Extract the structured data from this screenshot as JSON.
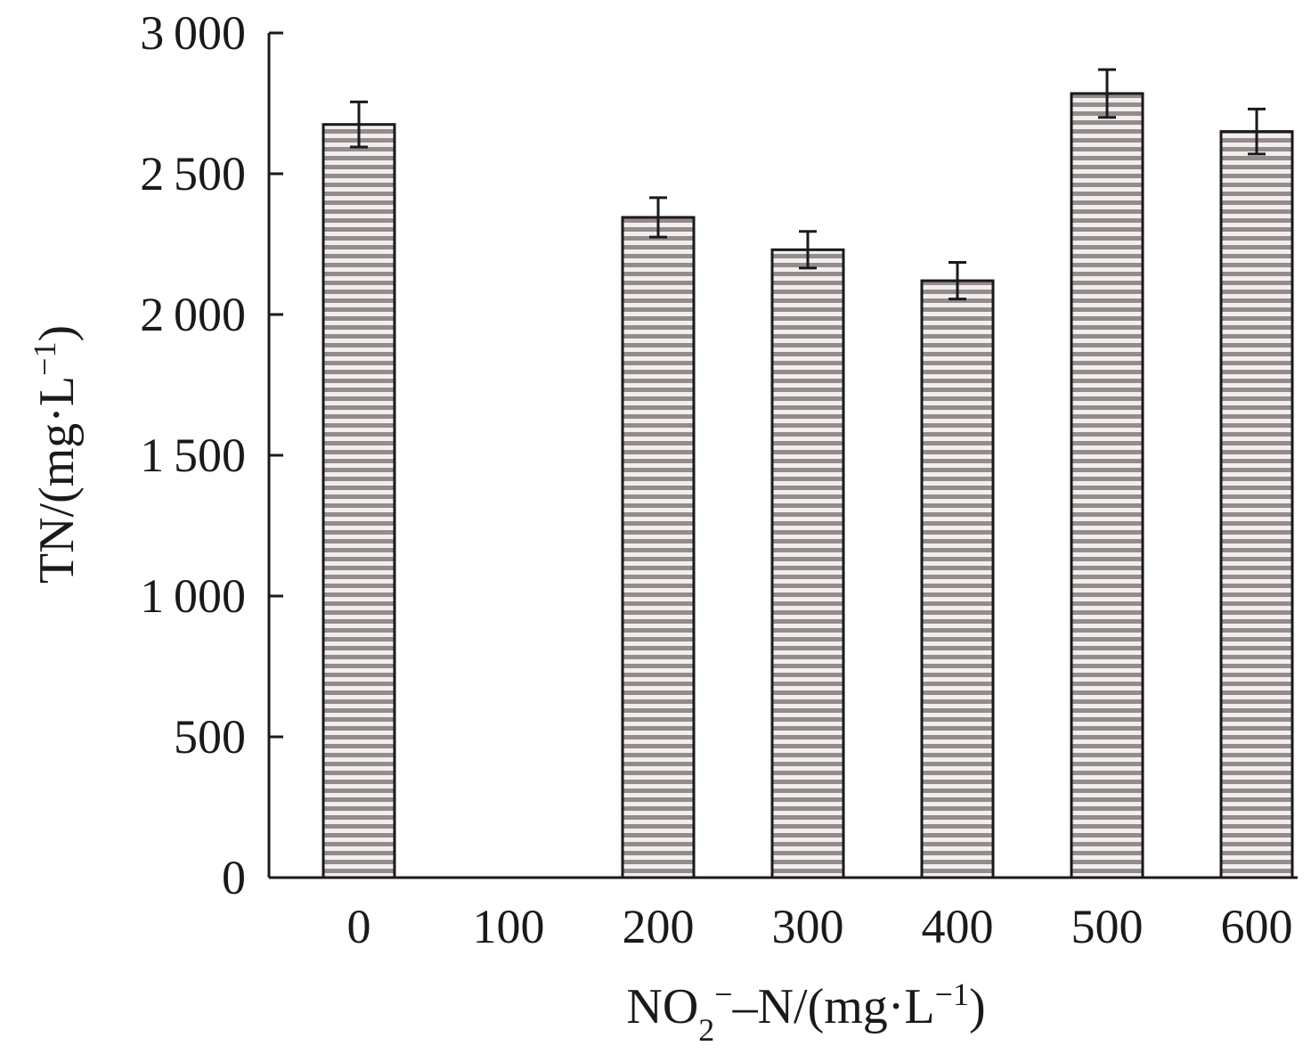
{
  "chart_data": {
    "type": "bar",
    "categories": [
      "0",
      "100",
      "200",
      "300",
      "400",
      "500",
      "600"
    ],
    "values": [
      2675,
      null,
      2345,
      2230,
      2120,
      2785,
      2650
    ],
    "errors": [
      80,
      null,
      70,
      65,
      65,
      85,
      80
    ],
    "title": "",
    "xlabel": {
      "main": "NO",
      "sub": "2",
      "sup": "−",
      "rest": "–N/(mg·L",
      "unit_sup": "−1",
      "close": ")"
    },
    "ylabel": {
      "main": "TN/(mg·L",
      "unit_sup": "−1",
      "close": ")"
    },
    "ylim": [
      0,
      3000
    ],
    "yticks": [
      0,
      500,
      1000,
      1500,
      2000,
      2500,
      3000
    ],
    "ytick_labels": [
      "0",
      "500",
      "1 000",
      "1 500",
      "2 000",
      "2 500",
      "3 000"
    ],
    "grid": false,
    "legend": "none",
    "colors": {
      "bar_stripe_dark": "#948c8c",
      "bar_stripe_light": "#f2eeee",
      "outline": "#1a1a1a"
    }
  }
}
